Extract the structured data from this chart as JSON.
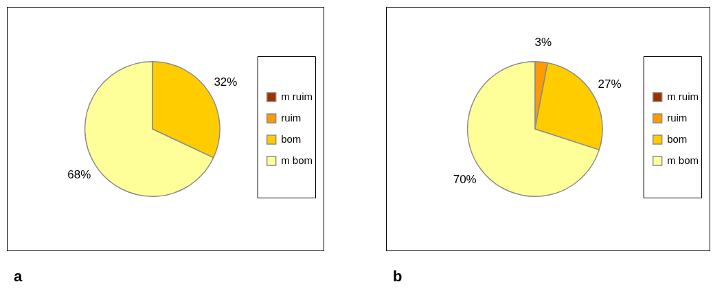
{
  "chart_data": [
    {
      "type": "pie",
      "categories": [
        "m ruim",
        "ruim",
        "bom",
        "m bom"
      ],
      "values": [
        0,
        0,
        32,
        68
      ],
      "colors": [
        "#993300",
        "#ff9900",
        "#ffcc00",
        "#ffff99"
      ],
      "value_labels": [
        null,
        null,
        "32%",
        "68%"
      ],
      "legend": "right",
      "annotations": [
        "a"
      ]
    },
    {
      "type": "pie",
      "categories": [
        "m ruim",
        "ruim",
        "bom",
        "m bom"
      ],
      "values": [
        0,
        3,
        27,
        70
      ],
      "colors": [
        "#993300",
        "#ff9900",
        "#ffcc00",
        "#ffff99"
      ],
      "value_labels": [
        null,
        "3%",
        "27%",
        "70%"
      ],
      "legend": "right",
      "annotations": [
        "b"
      ]
    }
  ]
}
